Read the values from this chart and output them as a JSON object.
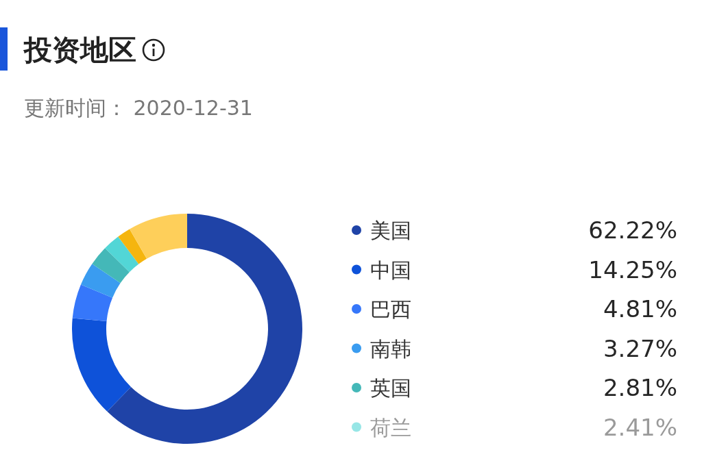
{
  "chart_data": {
    "type": "donut",
    "title": "投资地区",
    "subtitle": "更新时间： 2020-12-31",
    "categories": [
      "美国",
      "中国",
      "巴西",
      "南韩",
      "英国",
      "荷兰",
      null,
      null
    ],
    "values": [
      62.22,
      14.25,
      4.81,
      3.27,
      2.81,
      2.41,
      1.9,
      8.33
    ],
    "colors": [
      "#1f43a7",
      "#0e52d9",
      "#3677fa",
      "#3a9cf0",
      "#44b8b8",
      "#52d6d6",
      "#f5b50e",
      "#fecf5a"
    ],
    "value_labels": [
      "62.22%",
      "14.25%",
      "4.81%",
      "3.27%",
      "2.81%",
      "2.41%",
      null,
      null
    ],
    "legend": "right"
  }
}
